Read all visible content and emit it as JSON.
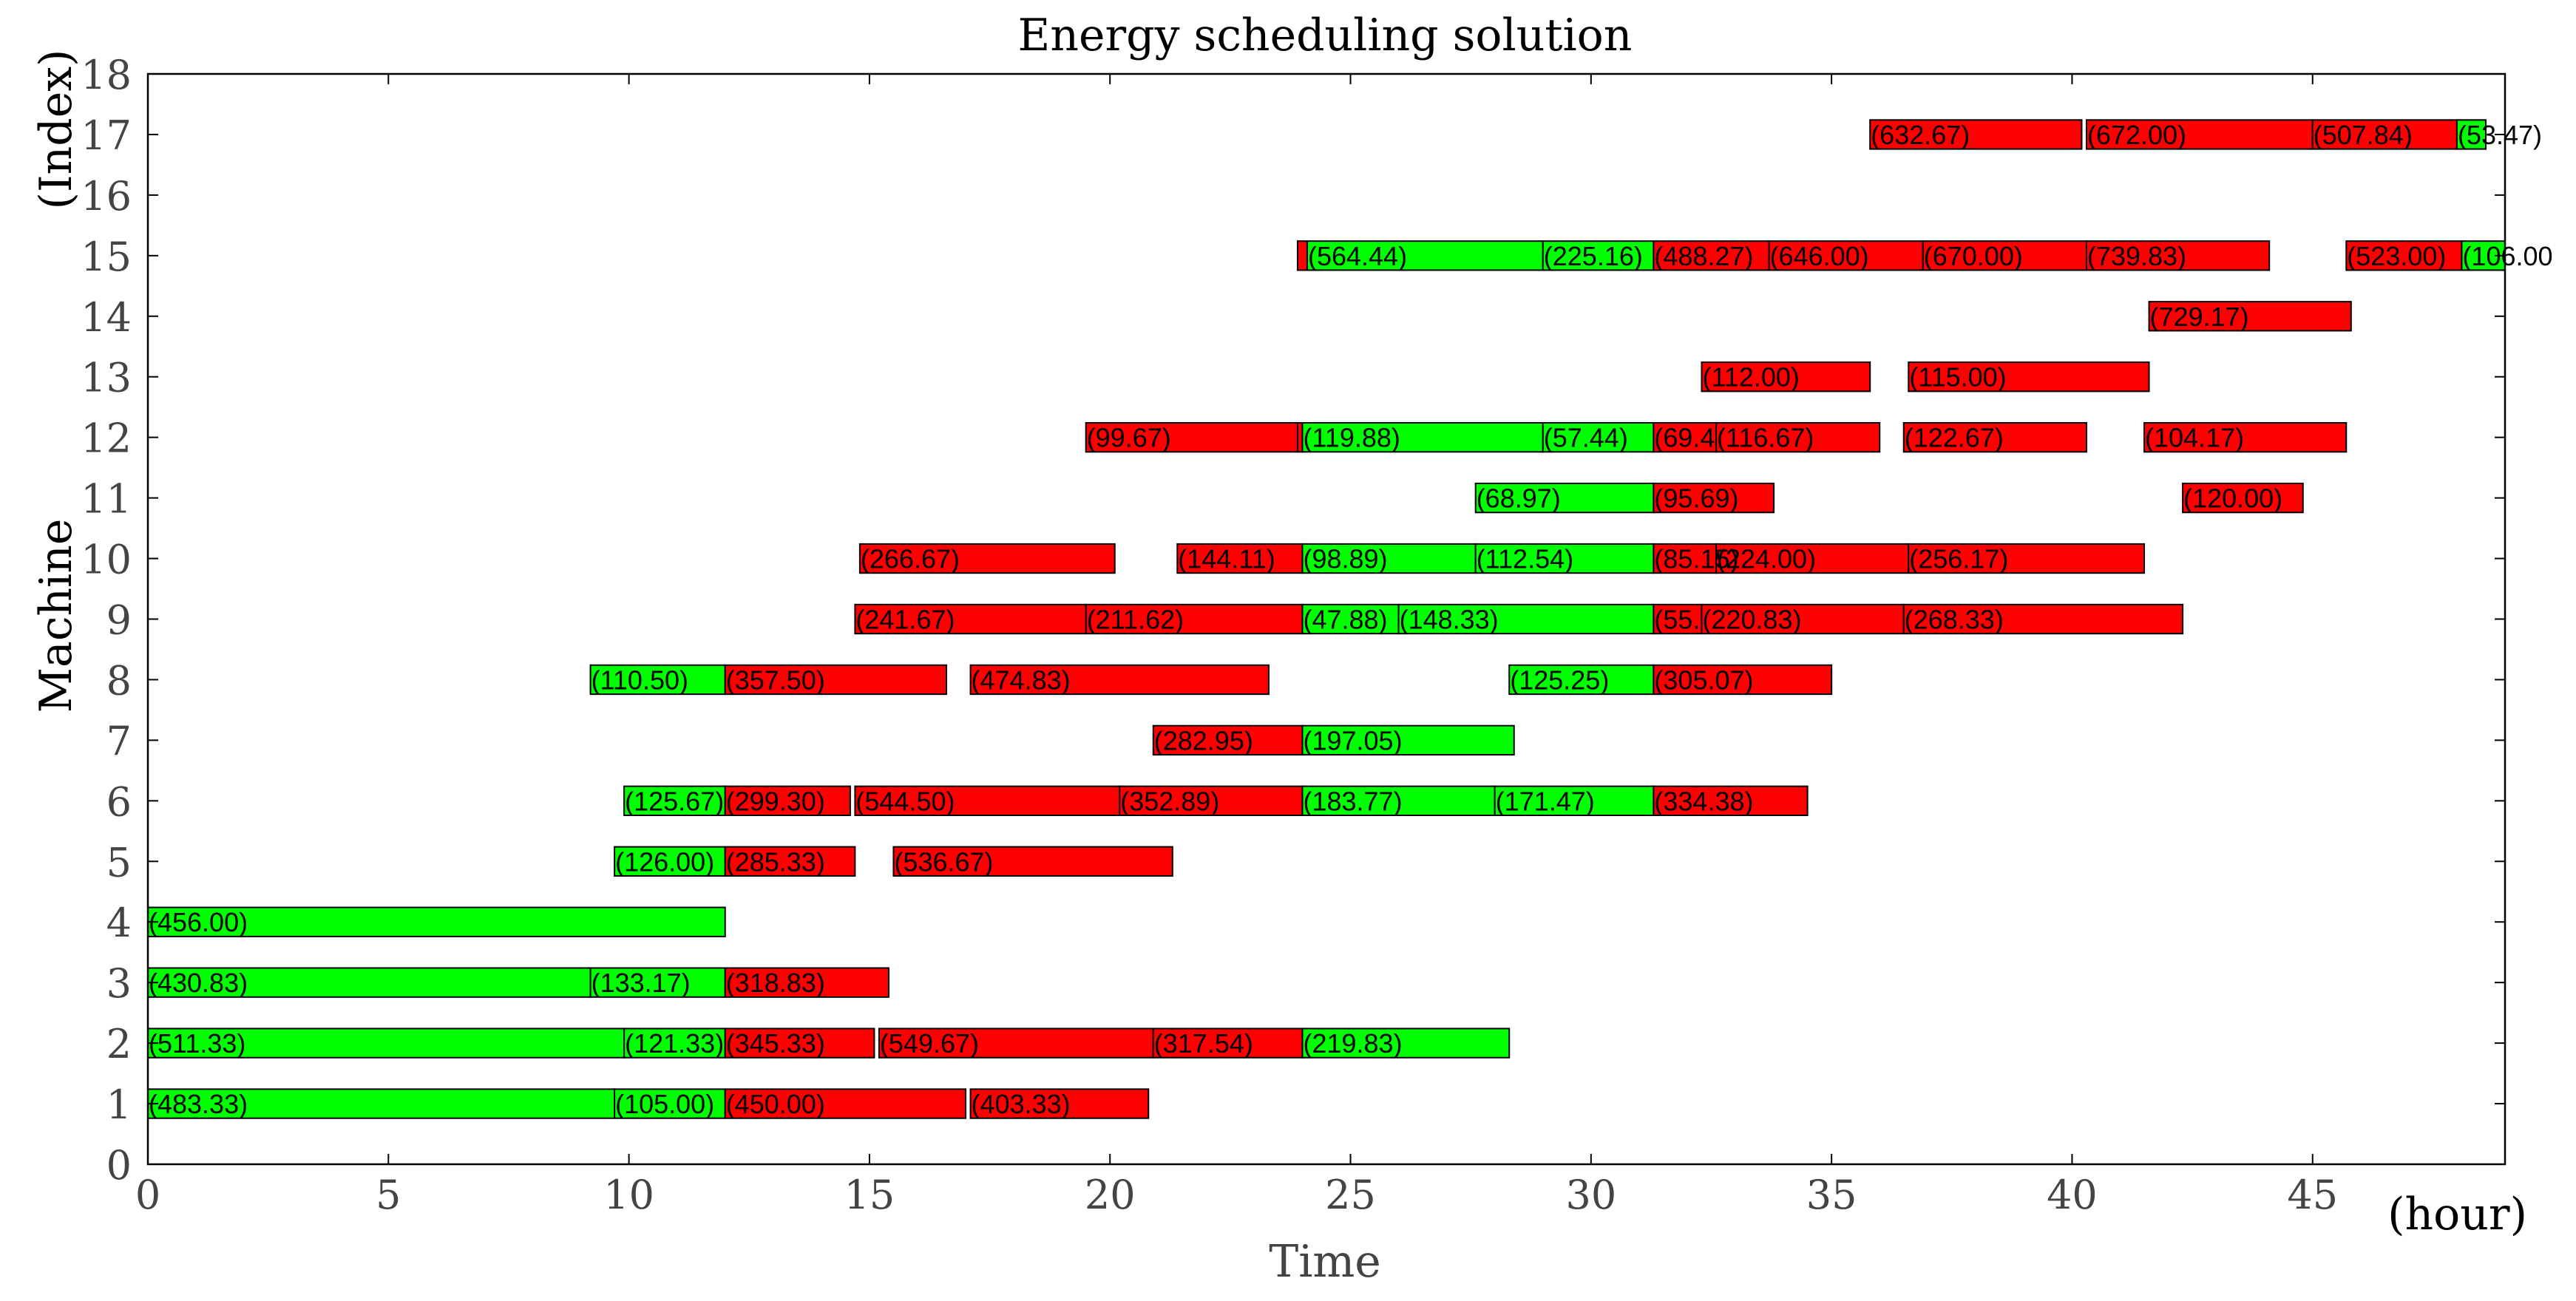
{
  "chart_data": {
    "type": "gantt",
    "title": "Energy scheduling solution",
    "xlabel": "Time",
    "xunit": "(hour)",
    "ylabel": "Machine",
    "yunit": "(Index)",
    "xlim": [
      0,
      49
    ],
    "ylim": [
      0,
      18
    ],
    "xticks": [
      0,
      5,
      10,
      15,
      20,
      25,
      30,
      35,
      40,
      45
    ],
    "yticks": [
      0,
      1,
      2,
      3,
      4,
      5,
      6,
      7,
      8,
      9,
      10,
      11,
      12,
      13,
      14,
      15,
      16,
      17,
      18
    ],
    "colors": {
      "green": "#00ff00",
      "red": "#ff0000",
      "edge": "#000000",
      "axis": "#000000"
    },
    "tasks": [
      {
        "machine": 1,
        "start": 0.0,
        "end": 9.7,
        "color": "green",
        "label": "(483.33)"
      },
      {
        "machine": 1,
        "start": 9.7,
        "end": 12.0,
        "color": "green",
        "label": "(105.00)"
      },
      {
        "machine": 1,
        "start": 12.0,
        "end": 17.0,
        "color": "red",
        "label": "(450.00)"
      },
      {
        "machine": 1,
        "start": 17.1,
        "end": 20.8,
        "color": "red",
        "label": "(403.33)"
      },
      {
        "machine": 2,
        "start": 0.0,
        "end": 9.9,
        "color": "green",
        "label": "(511.33)"
      },
      {
        "machine": 2,
        "start": 9.9,
        "end": 12.0,
        "color": "green",
        "label": "(121.33)"
      },
      {
        "machine": 2,
        "start": 12.0,
        "end": 15.1,
        "color": "red",
        "label": "(345.33)"
      },
      {
        "machine": 2,
        "start": 15.2,
        "end": 20.9,
        "color": "red",
        "label": "(549.67)"
      },
      {
        "machine": 2,
        "start": 20.9,
        "end": 24.0,
        "color": "red",
        "label": "(317.54)"
      },
      {
        "machine": 2,
        "start": 24.0,
        "end": 28.3,
        "color": "green",
        "label": "(219.83)"
      },
      {
        "machine": 3,
        "start": 0.0,
        "end": 9.2,
        "color": "green",
        "label": "(430.83)"
      },
      {
        "machine": 3,
        "start": 9.2,
        "end": 12.0,
        "color": "green",
        "label": "(133.17)"
      },
      {
        "machine": 3,
        "start": 12.0,
        "end": 15.4,
        "color": "red",
        "label": "(318.83)"
      },
      {
        "machine": 4,
        "start": 0.0,
        "end": 12.0,
        "color": "green",
        "label": "(456.00)"
      },
      {
        "machine": 5,
        "start": 9.7,
        "end": 12.0,
        "color": "green",
        "label": "(126.00)"
      },
      {
        "machine": 5,
        "start": 12.0,
        "end": 14.7,
        "color": "red",
        "label": "(285.33)"
      },
      {
        "machine": 5,
        "start": 15.5,
        "end": 21.3,
        "color": "red",
        "label": "(536.67)"
      },
      {
        "machine": 6,
        "start": 9.9,
        "end": 12.0,
        "color": "green",
        "label": "(125.67)"
      },
      {
        "machine": 6,
        "start": 12.0,
        "end": 14.6,
        "color": "red",
        "label": "(299.30)"
      },
      {
        "machine": 6,
        "start": 14.7,
        "end": 20.2,
        "color": "red",
        "label": "(544.50)"
      },
      {
        "machine": 6,
        "start": 20.2,
        "end": 24.0,
        "color": "red",
        "label": "(352.89)"
      },
      {
        "machine": 6,
        "start": 24.0,
        "end": 28.0,
        "color": "green",
        "label": "(183.77)"
      },
      {
        "machine": 6,
        "start": 28.0,
        "end": 31.3,
        "color": "green",
        "label": "(171.47)"
      },
      {
        "machine": 6,
        "start": 31.3,
        "end": 34.5,
        "color": "red",
        "label": "(334.38)"
      },
      {
        "machine": 7,
        "start": 20.9,
        "end": 24.0,
        "color": "red",
        "label": "(282.95)"
      },
      {
        "machine": 7,
        "start": 24.0,
        "end": 28.4,
        "color": "green",
        "label": "(197.05)"
      },
      {
        "machine": 8,
        "start": 9.2,
        "end": 12.0,
        "color": "green",
        "label": "(110.50)"
      },
      {
        "machine": 8,
        "start": 12.0,
        "end": 16.6,
        "color": "red",
        "label": "(357.50)"
      },
      {
        "machine": 8,
        "start": 17.1,
        "end": 23.3,
        "color": "red",
        "label": "(474.83)"
      },
      {
        "machine": 8,
        "start": 28.3,
        "end": 31.3,
        "color": "green",
        "label": "(125.25)"
      },
      {
        "machine": 8,
        "start": 31.3,
        "end": 35.0,
        "color": "red",
        "label": "(305.07)"
      },
      {
        "machine": 9,
        "start": 14.7,
        "end": 19.5,
        "color": "red",
        "label": "(241.67)"
      },
      {
        "machine": 9,
        "start": 19.5,
        "end": 24.0,
        "color": "red",
        "label": "(211.62)"
      },
      {
        "machine": 9,
        "start": 24.0,
        "end": 26.0,
        "color": "green",
        "label": "(47.88)"
      },
      {
        "machine": 9,
        "start": 26.0,
        "end": 31.3,
        "color": "green",
        "label": "(148.33)"
      },
      {
        "machine": 9,
        "start": 31.3,
        "end": 32.3,
        "color": "red",
        "label": "(55."
      },
      {
        "machine": 9,
        "start": 32.3,
        "end": 36.5,
        "color": "red",
        "label": "(220.83)"
      },
      {
        "machine": 9,
        "start": 36.5,
        "end": 42.3,
        "color": "red",
        "label": "(268.33)"
      },
      {
        "machine": 10,
        "start": 14.8,
        "end": 20.1,
        "color": "red",
        "label": "(266.67)"
      },
      {
        "machine": 10,
        "start": 21.4,
        "end": 24.0,
        "color": "red",
        "label": "(144.11)"
      },
      {
        "machine": 10,
        "start": 24.0,
        "end": 27.6,
        "color": "green",
        "label": "(98.89)"
      },
      {
        "machine": 10,
        "start": 27.6,
        "end": 31.3,
        "color": "green",
        "label": "(112.54)"
      },
      {
        "machine": 10,
        "start": 31.3,
        "end": 32.6,
        "color": "red",
        "label": "(85.15)"
      },
      {
        "machine": 10,
        "start": 32.6,
        "end": 36.6,
        "color": "red",
        "label": "(224.00)"
      },
      {
        "machine": 10,
        "start": 36.6,
        "end": 41.5,
        "color": "red",
        "label": "(256.17)"
      },
      {
        "machine": 11,
        "start": 27.6,
        "end": 31.3,
        "color": "green",
        "label": "(68.97)"
      },
      {
        "machine": 11,
        "start": 31.3,
        "end": 33.8,
        "color": "red",
        "label": "(95.69)"
      },
      {
        "machine": 11,
        "start": 42.3,
        "end": 44.8,
        "color": "red",
        "label": "(120.00)"
      },
      {
        "machine": 12,
        "start": 19.5,
        "end": 23.9,
        "color": "red",
        "label": "(99.67)"
      },
      {
        "machine": 12,
        "start": 23.9,
        "end": 24.0,
        "color": "red",
        "label": ""
      },
      {
        "machine": 12,
        "start": 24.0,
        "end": 29.0,
        "color": "green",
        "label": "(119.88)"
      },
      {
        "machine": 12,
        "start": 29.0,
        "end": 31.3,
        "color": "green",
        "label": "(57.44)"
      },
      {
        "machine": 12,
        "start": 31.3,
        "end": 32.6,
        "color": "red",
        "label": "(69.4"
      },
      {
        "machine": 12,
        "start": 32.6,
        "end": 36.0,
        "color": "red",
        "label": "(116.67)"
      },
      {
        "machine": 12,
        "start": 36.5,
        "end": 40.3,
        "color": "red",
        "label": "(122.67)"
      },
      {
        "machine": 12,
        "start": 41.5,
        "end": 45.7,
        "color": "red",
        "label": "(104.17)"
      },
      {
        "machine": 13,
        "start": 32.3,
        "end": 35.8,
        "color": "red",
        "label": "(112.00)"
      },
      {
        "machine": 13,
        "start": 36.6,
        "end": 41.6,
        "color": "red",
        "label": "(115.00)"
      },
      {
        "machine": 14,
        "start": 41.6,
        "end": 45.8,
        "color": "red",
        "label": "(729.17)"
      },
      {
        "machine": 15,
        "start": 23.9,
        "end": 24.1,
        "color": "red",
        "label": ""
      },
      {
        "machine": 15,
        "start": 24.1,
        "end": 29.0,
        "color": "green",
        "label": "(564.44)"
      },
      {
        "machine": 15,
        "start": 29.0,
        "end": 31.3,
        "color": "green",
        "label": "(225.16)"
      },
      {
        "machine": 15,
        "start": 31.3,
        "end": 33.7,
        "color": "red",
        "label": "(488.27)"
      },
      {
        "machine": 15,
        "start": 33.7,
        "end": 36.9,
        "color": "red",
        "label": "(646.00)"
      },
      {
        "machine": 15,
        "start": 36.9,
        "end": 40.3,
        "color": "red",
        "label": "(670.00)"
      },
      {
        "machine": 15,
        "start": 40.3,
        "end": 44.1,
        "color": "red",
        "label": "(739.83)"
      },
      {
        "machine": 15,
        "start": 45.7,
        "end": 48.1,
        "color": "red",
        "label": "(523.00)"
      },
      {
        "machine": 15,
        "start": 48.1,
        "end": 49.0,
        "color": "green",
        "label": "(106.00"
      },
      {
        "machine": 17,
        "start": 35.8,
        "end": 40.2,
        "color": "red",
        "label": "(632.67)"
      },
      {
        "machine": 17,
        "start": 40.3,
        "end": 45.0,
        "color": "red",
        "label": "(672.00)"
      },
      {
        "machine": 17,
        "start": 45.0,
        "end": 48.0,
        "color": "red",
        "label": "(507.84)"
      },
      {
        "machine": 17,
        "start": 48.0,
        "end": 48.6,
        "color": "green",
        "label": "(53.47)"
      }
    ]
  }
}
